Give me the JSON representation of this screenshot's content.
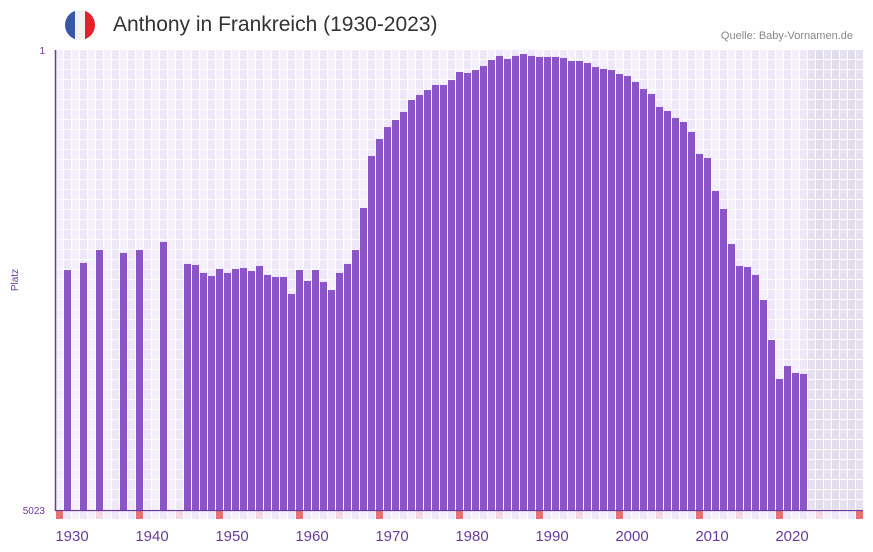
{
  "header": {
    "title": "Anthony in Frankreich (1930-2023)",
    "source": "Quelle: Baby-Vornamen.de",
    "flag_icon": "france-flag-icon",
    "flag_colors": [
      "#3a56a6",
      "#f1f1f1",
      "#e4202a"
    ]
  },
  "colors": {
    "bar": "#8c55c7",
    "axis": "#6a3a9e",
    "decade_marker": "#e57373",
    "half_decade_marker": "#f6d5de"
  },
  "chart_data": {
    "type": "bar",
    "title": "Anthony in Frankreich (1930-2023)",
    "xlabel": "",
    "ylabel": "Platz",
    "y_inverted": true,
    "ylim": [
      1,
      5023
    ],
    "ytick_labels": [
      "1",
      "5023"
    ],
    "xlim": [
      1930,
      2030
    ],
    "xtick_labels": [
      "1930",
      "1940",
      "1950",
      "1960",
      "1970",
      "1980",
      "1990",
      "2000",
      "2010",
      "2020"
    ],
    "grid": true,
    "years": [
      1930,
      1931,
      1932,
      1933,
      1934,
      1935,
      1936,
      1937,
      1938,
      1939,
      1940,
      1941,
      1942,
      1943,
      1944,
      1945,
      1946,
      1947,
      1948,
      1949,
      1950,
      1951,
      1952,
      1953,
      1954,
      1955,
      1956,
      1957,
      1958,
      1959,
      1960,
      1961,
      1962,
      1963,
      1964,
      1965,
      1966,
      1967,
      1968,
      1969,
      1970,
      1971,
      1972,
      1973,
      1974,
      1975,
      1976,
      1977,
      1978,
      1979,
      1980,
      1981,
      1982,
      1983,
      1984,
      1985,
      1986,
      1987,
      1988,
      1989,
      1990,
      1991,
      1992,
      1993,
      1994,
      1995,
      1996,
      1997,
      1998,
      1999,
      2000,
      2001,
      2002,
      2003,
      2004,
      2005,
      2006,
      2007,
      2008,
      2009,
      2010,
      2011,
      2012,
      2013,
      2014,
      2015,
      2016,
      2017,
      2018,
      2019,
      2020,
      2021,
      2022,
      2023
    ],
    "values": [
      null,
      2403,
      null,
      2326,
      null,
      2184,
      null,
      null,
      2217,
      null,
      2184,
      null,
      null,
      2097,
      null,
      null,
      2337,
      2348,
      2435,
      2468,
      2392,
      2435,
      2392,
      2381,
      2414,
      2359,
      2457,
      2479,
      2479,
      2665,
      2403,
      2523,
      2403,
      2534,
      2621,
      2435,
      2337,
      2184,
      1726,
      1158,
      973,
      842,
      765,
      678,
      547,
      492,
      438,
      383,
      383,
      329,
      241,
      252,
      219,
      176,
      110,
      66,
      99,
      66,
      45,
      66,
      77,
      77,
      77,
      88,
      121,
      121,
      143,
      187,
      208,
      219,
      263,
      285,
      350,
      427,
      481,
      623,
      667,
      743,
      787,
      896,
      1136,
      1180,
      1540,
      1737,
      2119,
      2359,
      2370,
      2457,
      2730,
      3167,
      3593,
      3451,
      3527,
      3538
    ]
  }
}
